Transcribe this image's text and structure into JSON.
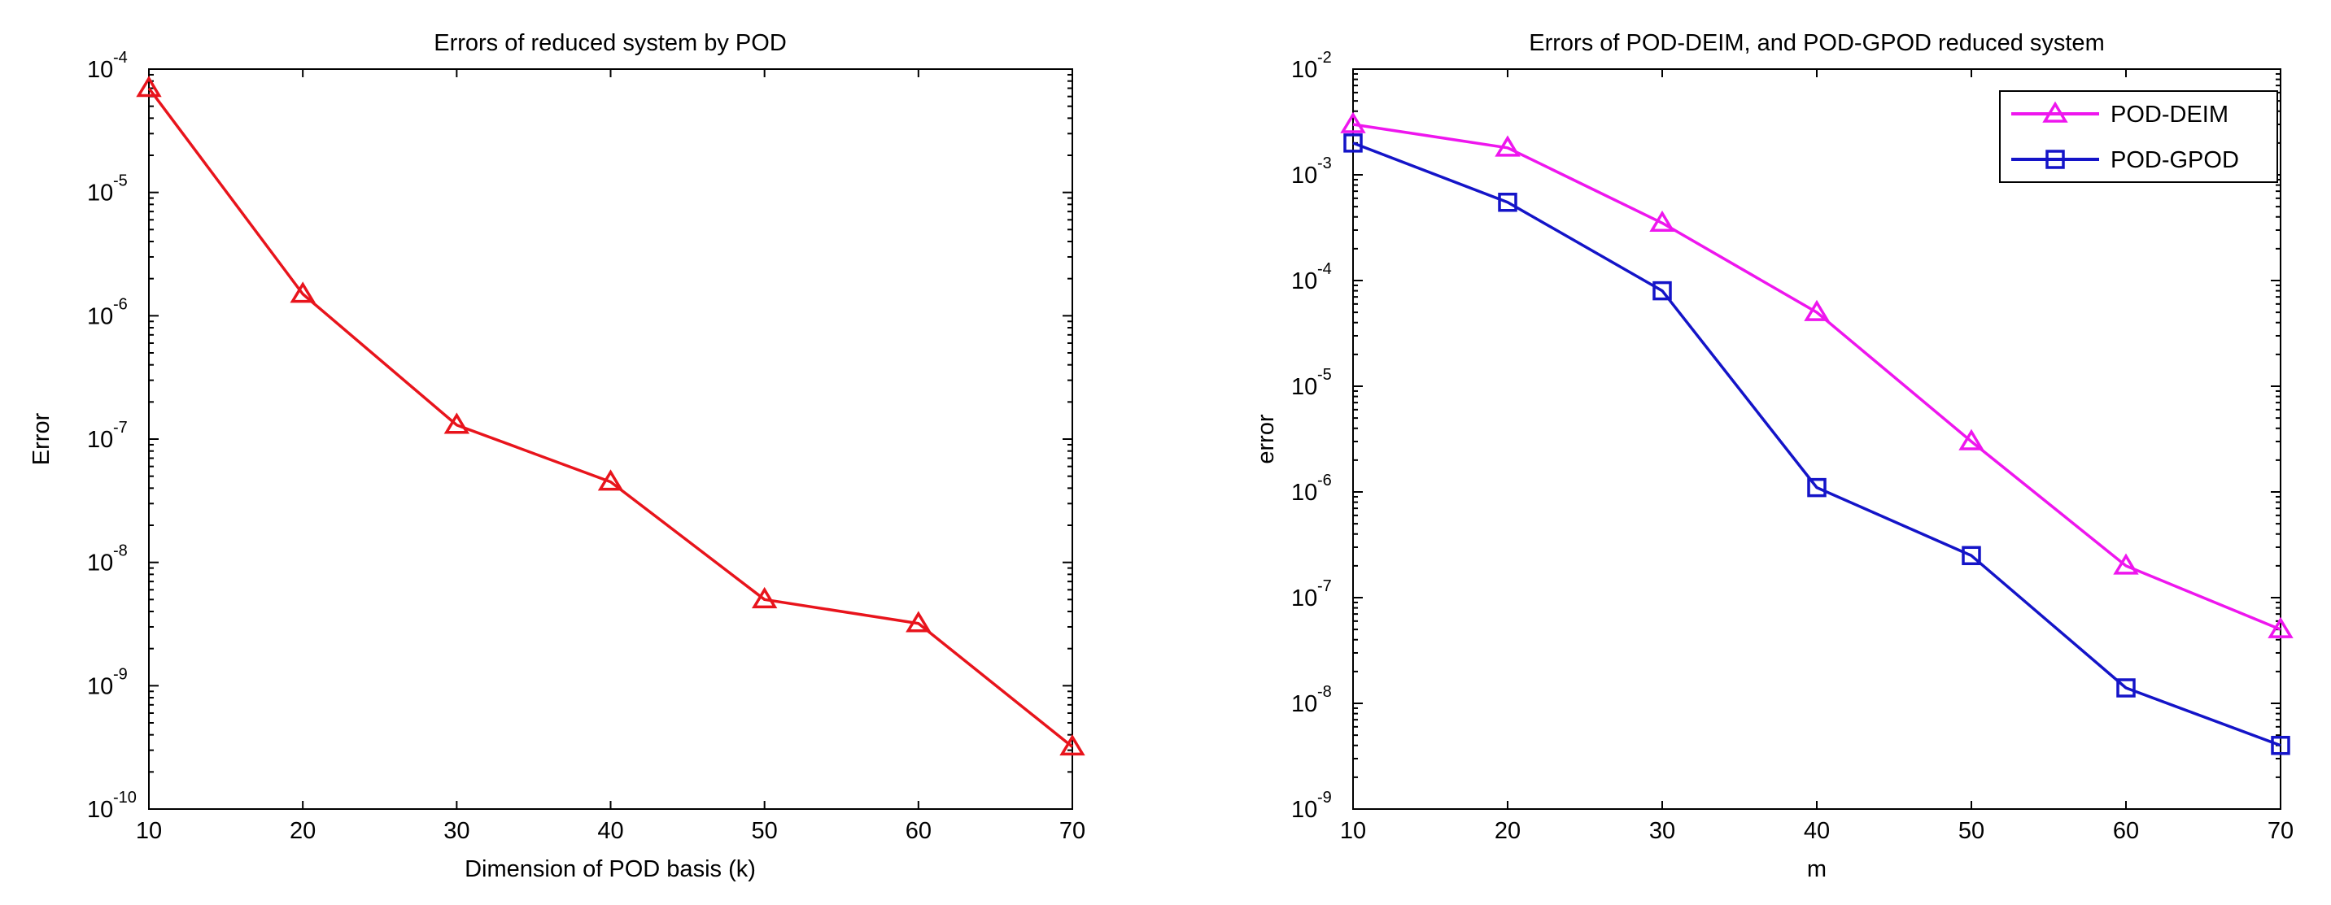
{
  "chart_data": [
    {
      "type": "line",
      "title": "Errors of reduced system by POD",
      "xlabel": "Dimension of POD basis (k)",
      "ylabel": "Error",
      "yscale": "log",
      "xlim": [
        10,
        70
      ],
      "ylim_exponent": [
        -10,
        -4
      ],
      "xticks": [
        "10",
        "20",
        "30",
        "40",
        "50",
        "60",
        "70"
      ],
      "ytick_base": "10",
      "ytick_exponents": [
        "-10",
        "-9",
        "-8",
        "-7",
        "-6",
        "-5",
        "-4"
      ],
      "legend": null,
      "series": [
        {
          "name": "POD",
          "color": "#e8141c",
          "marker": "triangle",
          "x": [
            10,
            20,
            30,
            40,
            50,
            60,
            70
          ],
          "y": [
            7e-05,
            1.5e-06,
            1.3e-07,
            4.5e-08,
            5e-09,
            3.2e-09,
            3.2e-10
          ]
        }
      ]
    },
    {
      "type": "line",
      "title": "Errors of POD-DEIM, and POD-GPOD reduced system",
      "xlabel": "m",
      "ylabel": "error",
      "yscale": "log",
      "xlim": [
        10,
        70
      ],
      "ylim_exponent": [
        -9,
        -2
      ],
      "xticks": [
        "10",
        "20",
        "30",
        "40",
        "50",
        "60",
        "70"
      ],
      "ytick_base": "10",
      "ytick_exponents": [
        "-9",
        "-8",
        "-7",
        "-6",
        "-5",
        "-4",
        "-3",
        "-2"
      ],
      "legend": "top-right",
      "series": [
        {
          "name": "POD-DEIM",
          "color": "#ee16ee",
          "marker": "triangle",
          "x": [
            10,
            20,
            30,
            40,
            50,
            60,
            70
          ],
          "y": [
            0.003,
            0.0018,
            0.00035,
            5e-05,
            3e-06,
            2e-07,
            5e-08
          ]
        },
        {
          "name": "POD-GPOD",
          "color": "#1414c8",
          "marker": "square",
          "x": [
            10,
            20,
            30,
            40,
            50,
            60,
            70
          ],
          "y": [
            0.002,
            0.00055,
            8e-05,
            1.1e-06,
            2.5e-07,
            1.4e-08,
            4e-09
          ]
        }
      ]
    }
  ]
}
